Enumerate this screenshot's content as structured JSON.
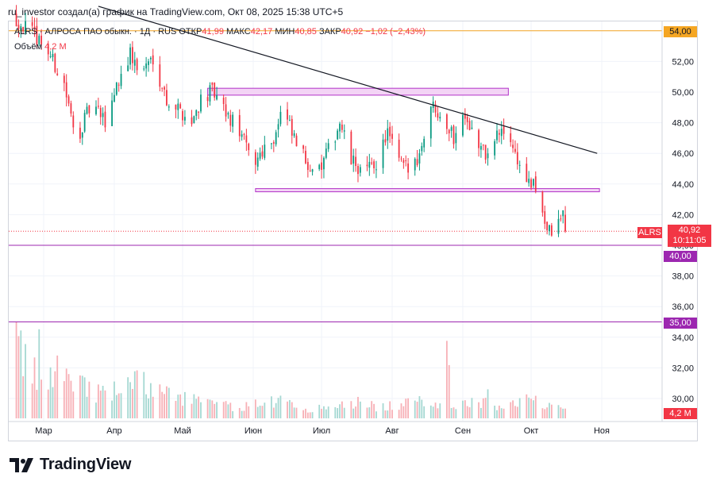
{
  "caption": "ru_investor создал(а) график на TradingView.com, Окт 08, 2025 15:38 UTC+5",
  "legend": {
    "symbol": "ALRS",
    "name": "· АЛРОСА ПАО обыкн. · 1Д · RUS",
    "open_label": "ОТКР",
    "open_value": "41,99",
    "high_label": "МАКС",
    "high_value": "42,17",
    "low_label": "МИН",
    "low_value": "40,85",
    "close_label": "ЗАКР",
    "close_value": "40,92",
    "change": "−1,02 (−2,43%)"
  },
  "volume_legend": {
    "label": "Объём",
    "value": "4,2 M"
  },
  "price_tag": {
    "symbol": "ALRS",
    "price": "40,92",
    "countdown": "10:11:05"
  },
  "level_tags": {
    "top": "54,00",
    "mid": "40,00",
    "low": "35,00"
  },
  "volume_tag": "4,2 M",
  "brand": "TradingView",
  "colors": {
    "up": "#089981",
    "down": "#f23645",
    "up_volume": "#a5d8d2",
    "down_volume": "#f7b0b6",
    "level_orange": "#f5a623",
    "level_purple": "#9c27b0",
    "zone_fill": "#f3d4f5",
    "zone_stroke": "#b233c8",
    "trendline": "#131722",
    "grid": "#f0f3fa"
  },
  "chart_data": {
    "type": "candlestick",
    "symbol": "ALRS",
    "timeframe": "1Д",
    "x_tick_labels": [
      "Мар",
      "Апр",
      "Май",
      "Июн",
      "Июл",
      "Авг",
      "Сен",
      "Окт",
      "Ноя"
    ],
    "y_tick_labels": [
      "30,00",
      "32,00",
      "34,00",
      "36,00",
      "38,00",
      "40,00",
      "42,00",
      "44,00",
      "46,00",
      "48,00",
      "50,00",
      "52,00",
      "54,00"
    ],
    "ylim": [
      29,
      55.5
    ],
    "last": {
      "open": 41.99,
      "high": 42.17,
      "low": 40.85,
      "close": 40.92,
      "change": -1.02,
      "change_pct": -2.43
    },
    "horizontal_levels": [
      54.0,
      40.0,
      35.0
    ],
    "zones": [
      {
        "from": "2025-05-12",
        "to": "2025-09-21",
        "low": 49.8,
        "high": 50.25
      },
      {
        "from": "2025-06-02",
        "to": "2025-10-31",
        "low": 43.5,
        "high": 43.7
      }
    ],
    "trendline": {
      "start": [
        "2025-03-25",
        55.6
      ],
      "end": [
        "2025-10-30",
        46.0
      ]
    },
    "close_path": [
      [
        "2025-02-15",
        55.0
      ],
      [
        "2025-03-01",
        53.2
      ],
      [
        "2025-03-10",
        50.5
      ],
      [
        "2025-03-15",
        46.8
      ],
      [
        "2025-03-22",
        49.2
      ],
      [
        "2025-03-28",
        48.0
      ],
      [
        "2025-04-02",
        50.5
      ],
      [
        "2025-04-08",
        52.5
      ],
      [
        "2025-04-12",
        51.2
      ],
      [
        "2025-04-18",
        52.3
      ],
      [
        "2025-04-24",
        49.5
      ],
      [
        "2025-04-30",
        48.8
      ],
      [
        "2025-05-05",
        48.0
      ],
      [
        "2025-05-09",
        49.6
      ],
      [
        "2025-05-14",
        50.0
      ],
      [
        "2025-05-20",
        48.5
      ],
      [
        "2025-05-26",
        47.5
      ],
      [
        "2025-06-01",
        45.2
      ],
      [
        "2025-06-05",
        46.3
      ],
      [
        "2025-06-10",
        47.0
      ],
      [
        "2025-06-14",
        49.0
      ],
      [
        "2025-06-18",
        47.2
      ],
      [
        "2025-06-24",
        45.5
      ],
      [
        "2025-06-30",
        44.8
      ],
      [
        "2025-07-05",
        46.5
      ],
      [
        "2025-07-09",
        48.0
      ],
      [
        "2025-07-14",
        45.5
      ],
      [
        "2025-07-20",
        44.7
      ],
      [
        "2025-07-25",
        45.4
      ],
      [
        "2025-07-30",
        47.4
      ],
      [
        "2025-08-03",
        45.6
      ],
      [
        "2025-08-08",
        44.9
      ],
      [
        "2025-08-13",
        46.0
      ],
      [
        "2025-08-18",
        49.2
      ],
      [
        "2025-08-23",
        48.6
      ],
      [
        "2025-08-28",
        47.0
      ],
      [
        "2025-09-02",
        48.8
      ],
      [
        "2025-09-07",
        46.6
      ],
      [
        "2025-09-12",
        45.8
      ],
      [
        "2025-09-16",
        47.2
      ],
      [
        "2025-09-21",
        47.4
      ],
      [
        "2025-09-25",
        45.5
      ],
      [
        "2025-09-30",
        44.0
      ],
      [
        "2025-10-04",
        43.6
      ],
      [
        "2025-10-08",
        41.0
      ],
      [
        "2025-10-11",
        40.7
      ],
      [
        "2025-10-15",
        42.1
      ],
      [
        "2025-10-16",
        40.92
      ]
    ],
    "volume_path": [
      [
        "2025-02-15",
        0.85
      ],
      [
        "2025-02-22",
        0.55
      ],
      [
        "2025-03-01",
        0.4
      ],
      [
        "2025-03-08",
        0.6
      ],
      [
        "2025-03-15",
        0.45
      ],
      [
        "2025-03-22",
        0.3
      ],
      [
        "2025-03-29",
        0.25
      ],
      [
        "2025-04-05",
        0.35
      ],
      [
        "2025-04-12",
        0.4
      ],
      [
        "2025-04-19",
        0.3
      ],
      [
        "2025-04-26",
        0.25
      ],
      [
        "2025-05-03",
        0.22
      ],
      [
        "2025-05-10",
        0.18
      ],
      [
        "2025-05-17",
        0.15
      ],
      [
        "2025-05-24",
        0.12
      ],
      [
        "2025-05-31",
        0.14
      ],
      [
        "2025-06-07",
        0.2
      ],
      [
        "2025-06-14",
        0.18
      ],
      [
        "2025-06-21",
        0.12
      ],
      [
        "2025-06-28",
        0.1
      ],
      [
        "2025-07-05",
        0.12
      ],
      [
        "2025-07-12",
        0.15
      ],
      [
        "2025-07-19",
        0.18
      ],
      [
        "2025-07-26",
        0.12
      ],
      [
        "2025-08-02",
        0.14
      ],
      [
        "2025-08-09",
        0.16
      ],
      [
        "2025-08-16",
        0.2
      ],
      [
        "2025-08-23",
        0.16
      ],
      [
        "2025-08-30",
        0.14
      ],
      [
        "2025-09-06",
        0.18
      ],
      [
        "2025-09-13",
        0.16
      ],
      [
        "2025-09-20",
        0.14
      ],
      [
        "2025-09-27",
        0.2
      ],
      [
        "2025-10-04",
        0.18
      ],
      [
        "2025-10-11",
        0.16
      ],
      [
        "2025-10-16",
        0.14
      ]
    ],
    "volume_spikes": [
      [
        "2025-02-17",
        1.0,
        "down"
      ],
      [
        "2025-02-27",
        0.92,
        "up"
      ],
      [
        "2025-08-25",
        0.8,
        "up"
      ],
      [
        "2025-08-26",
        0.55,
        "down"
      ],
      [
        "2025-05-03",
        0.45,
        "up"
      ],
      [
        "2025-09-12",
        0.3,
        "down"
      ]
    ]
  }
}
